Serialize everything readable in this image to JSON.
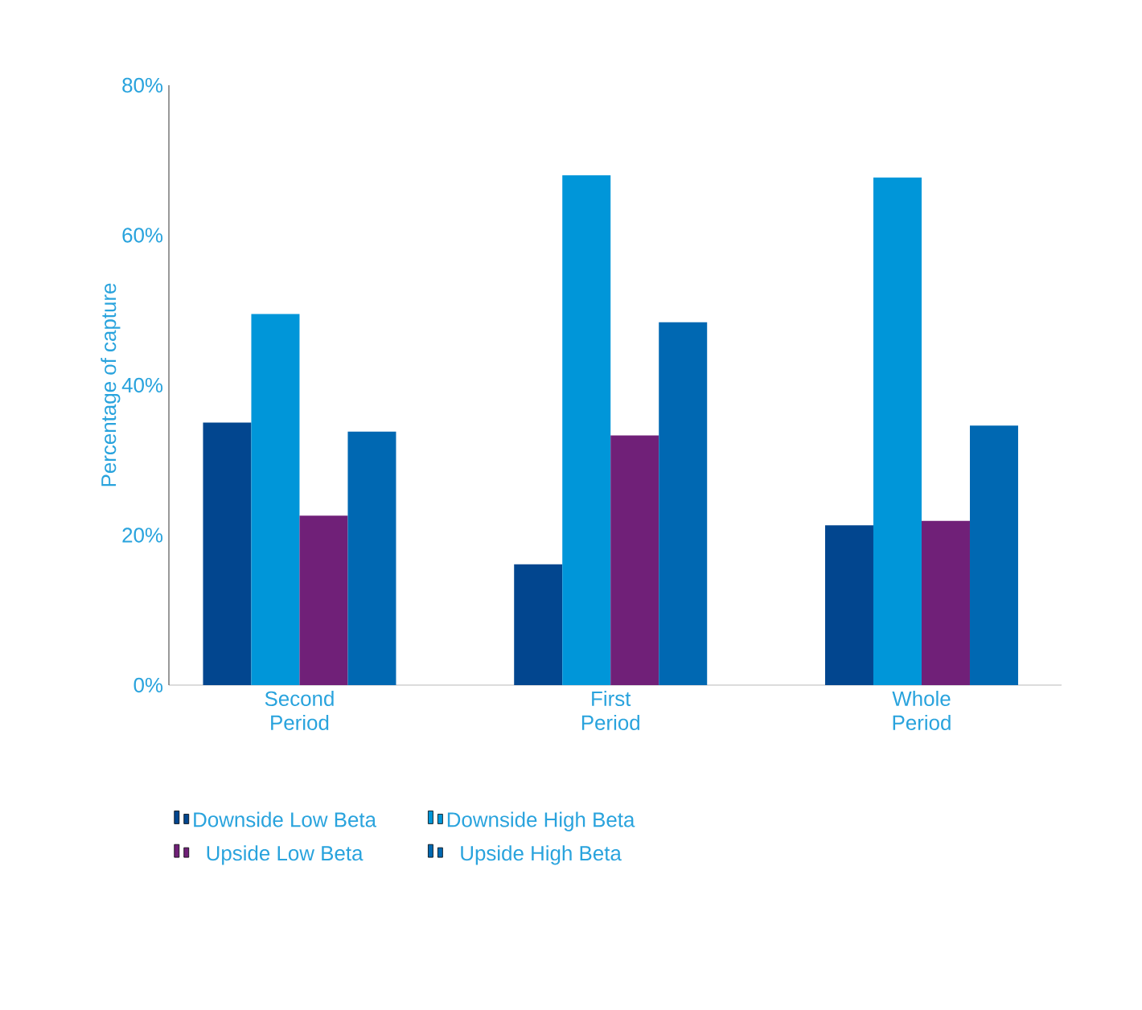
{
  "chart_data": {
    "type": "bar",
    "ylabel": "Percentage of capture",
    "categories": [
      "Second\nPeriod",
      "First\nPeriod",
      "Whole\nPeriod"
    ],
    "series": [
      {
        "name": "Downside Low Beta",
        "color": "#02468f",
        "values": [
          35.0,
          16.1,
          21.3
        ]
      },
      {
        "name": "Downside High Beta",
        "color": "#0096d9",
        "values": [
          49.5,
          68.0,
          67.7
        ]
      },
      {
        "name": "Upside Low Beta",
        "color": "#702078",
        "values": [
          22.6,
          33.3,
          21.9
        ]
      },
      {
        "name": "Upside  High Beta",
        "color": "#0068b2",
        "values": [
          33.8,
          48.4,
          34.6
        ]
      }
    ],
    "ylim": [
      0,
      80
    ],
    "yticks": [
      {
        "value": 0,
        "label": "0%"
      },
      {
        "value": 20,
        "label": "20%"
      },
      {
        "value": 40,
        "label": "40%"
      },
      {
        "value": 60,
        "label": "60%"
      },
      {
        "value": 80,
        "label": "80%"
      }
    ],
    "grid": false,
    "legend": "bottom"
  }
}
